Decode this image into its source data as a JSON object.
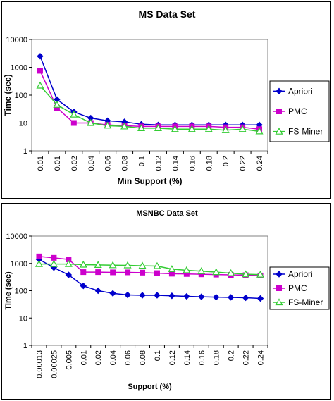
{
  "chart_data": [
    {
      "type": "line",
      "title": "MS Data Set",
      "xlabel": "Min Support (%)",
      "ylabel": "Time (sec)",
      "yscale": "log",
      "ylim": [
        1,
        10000
      ],
      "yticks": [
        "1",
        "10",
        "100",
        "1000",
        "10000"
      ],
      "categories": [
        "0.01",
        "0.01",
        "0.02",
        "0.04",
        "0.06",
        "0.08",
        "0.1",
        "0.12",
        "0.14",
        "0.16",
        "0.18",
        "0.2",
        "0.22",
        "0.24"
      ],
      "legend_position": "right",
      "grid": false,
      "series": [
        {
          "name": "Apriori",
          "color": "#0000CC",
          "marker": "diamond",
          "values": [
            2500,
            70,
            25,
            15,
            12,
            11,
            9,
            8.5,
            8.5,
            8.5,
            8.5,
            8.5,
            8.5,
            8.5
          ]
        },
        {
          "name": "PMC",
          "color": "#CC00CC",
          "marker": "square",
          "values": [
            750,
            35,
            10,
            10,
            8.5,
            8,
            7.5,
            7.5,
            7.5,
            7.5,
            7.5,
            7,
            7,
            6
          ]
        },
        {
          "name": "FS-Miner",
          "color": "#33CC33",
          "marker": "triangle",
          "values": [
            220,
            45,
            20,
            10,
            8,
            7.5,
            6.5,
            6.5,
            6,
            6,
            6,
            5.5,
            6,
            5
          ]
        }
      ]
    },
    {
      "type": "line",
      "title": "MSNBC Data Set",
      "xlabel": "Support (%)",
      "ylabel": "Time (sec)",
      "yscale": "log",
      "ylim": [
        1,
        10000
      ],
      "yticks": [
        "1",
        "10",
        "100",
        "1000",
        "10000"
      ],
      "categories": [
        "0.00013",
        "0.00025",
        "0.005",
        "0.01",
        "0.02",
        "0.04",
        "0.06",
        "0.08",
        "0.1",
        "0.12",
        "0.14",
        "0.16",
        "0.18",
        "0.2",
        "0.22",
        "0.24"
      ],
      "legend_position": "right",
      "grid": false,
      "series": [
        {
          "name": "Apriori",
          "color": "#0000CC",
          "marker": "diamond",
          "values": [
            1400,
            700,
            380,
            150,
            100,
            80,
            70,
            68,
            68,
            65,
            62,
            60,
            58,
            57,
            55,
            52
          ]
        },
        {
          "name": "PMC",
          "color": "#CC00CC",
          "marker": "square",
          "values": [
            1800,
            1600,
            1400,
            480,
            480,
            470,
            470,
            460,
            440,
            420,
            410,
            400,
            390,
            380,
            370,
            360
          ]
        },
        {
          "name": "FS-Miner",
          "color": "#33CC33",
          "marker": "triangle",
          "values": [
            950,
            950,
            950,
            900,
            880,
            860,
            850,
            820,
            800,
            620,
            560,
            520,
            480,
            440,
            400,
            390
          ]
        }
      ]
    }
  ]
}
